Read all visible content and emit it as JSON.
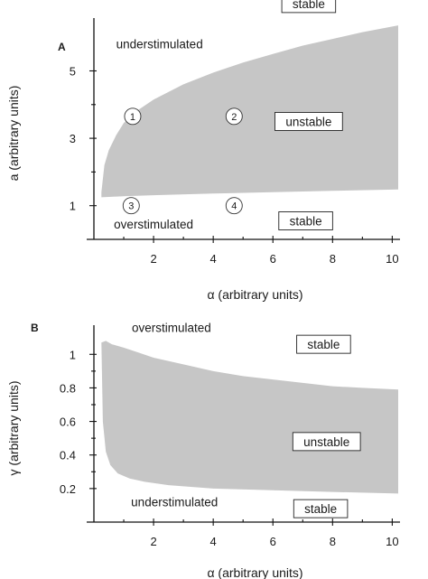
{
  "chart_data": [
    {
      "panel_label": "A",
      "type": "area",
      "xlabel": "α (arbitrary units)",
      "ylabel": "a (arbitrary units)",
      "xlim": [
        0,
        10.2
      ],
      "ylim": [
        0,
        6.3
      ],
      "xticks": [
        2,
        4,
        6,
        8,
        10
      ],
      "yticks": [
        1,
        3,
        5
      ],
      "region": {
        "name": "unstable",
        "upper_boundary": {
          "x": [
            0.25,
            0.35,
            0.5,
            0.75,
            1.0,
            1.5,
            2.0,
            3.0,
            4.0,
            5.0,
            6.0,
            7.0,
            8.0,
            9.0,
            10.2
          ],
          "y": [
            1.4,
            2.2,
            2.65,
            3.1,
            3.45,
            3.85,
            4.15,
            4.6,
            4.95,
            5.25,
            5.5,
            5.75,
            5.95,
            6.15,
            6.35
          ]
        },
        "lower_boundary": {
          "x": [
            0.25,
            0.5,
            1.0,
            2.0,
            4.0,
            6.0,
            8.0,
            10.2
          ],
          "y": [
            1.25,
            1.26,
            1.28,
            1.31,
            1.36,
            1.4,
            1.44,
            1.48
          ]
        }
      },
      "annotations": [
        {
          "text": "understimulated",
          "x": 2.2,
          "y": 5.8
        },
        {
          "text": "overstimulated",
          "x": 2.0,
          "y": 0.45
        }
      ],
      "boxed_labels": [
        {
          "text": "stable",
          "x": 7.2,
          "y": 7.0
        },
        {
          "text": "unstable",
          "x": 7.2,
          "y": 3.5
        },
        {
          "text": "stable",
          "x": 7.1,
          "y": 0.55
        }
      ],
      "markers": [
        {
          "label": "1",
          "x": 1.3,
          "y": 3.65
        },
        {
          "label": "2",
          "x": 4.7,
          "y": 3.65
        },
        {
          "label": "3",
          "x": 1.25,
          "y": 1.0
        },
        {
          "label": "4",
          "x": 4.7,
          "y": 1.0
        }
      ]
    },
    {
      "panel_label": "B",
      "type": "area",
      "xlabel": "α (arbitrary units)",
      "ylabel": "γ (arbitrary units)",
      "xlim": [
        0,
        10.2
      ],
      "ylim": [
        0,
        1.12
      ],
      "xticks": [
        2,
        4,
        6,
        8,
        10
      ],
      "yticks": [
        0.2,
        0.4,
        0.6,
        0.8,
        1
      ],
      "region": {
        "name": "unstable",
        "upper_boundary": {
          "x": [
            0.25,
            0.4,
            0.6,
            1.0,
            1.5,
            2.0,
            3.0,
            4.0,
            5.0,
            6.0,
            7.0,
            8.0,
            9.0,
            10.2
          ],
          "y": [
            1.07,
            1.08,
            1.06,
            1.04,
            1.01,
            0.98,
            0.94,
            0.9,
            0.87,
            0.85,
            0.83,
            0.81,
            0.8,
            0.79
          ]
        },
        "lower_boundary": {
          "x": [
            0.25,
            0.3,
            0.4,
            0.55,
            0.8,
            1.2,
            1.7,
            2.5,
            4.0,
            6.0,
            8.0,
            10.2
          ],
          "y": [
            1.07,
            0.6,
            0.42,
            0.34,
            0.29,
            0.26,
            0.24,
            0.22,
            0.2,
            0.19,
            0.18,
            0.17
          ]
        }
      },
      "annotations": [
        {
          "text": "overstimulated",
          "x": 2.6,
          "y": 1.16
        },
        {
          "text": "understimulated",
          "x": 2.7,
          "y": 0.12
        }
      ],
      "boxed_labels": [
        {
          "text": "stable",
          "x": 7.7,
          "y": 1.06
        },
        {
          "text": "unstable",
          "x": 7.8,
          "y": 0.48
        },
        {
          "text": "stable",
          "x": 7.6,
          "y": 0.08
        }
      ]
    }
  ]
}
